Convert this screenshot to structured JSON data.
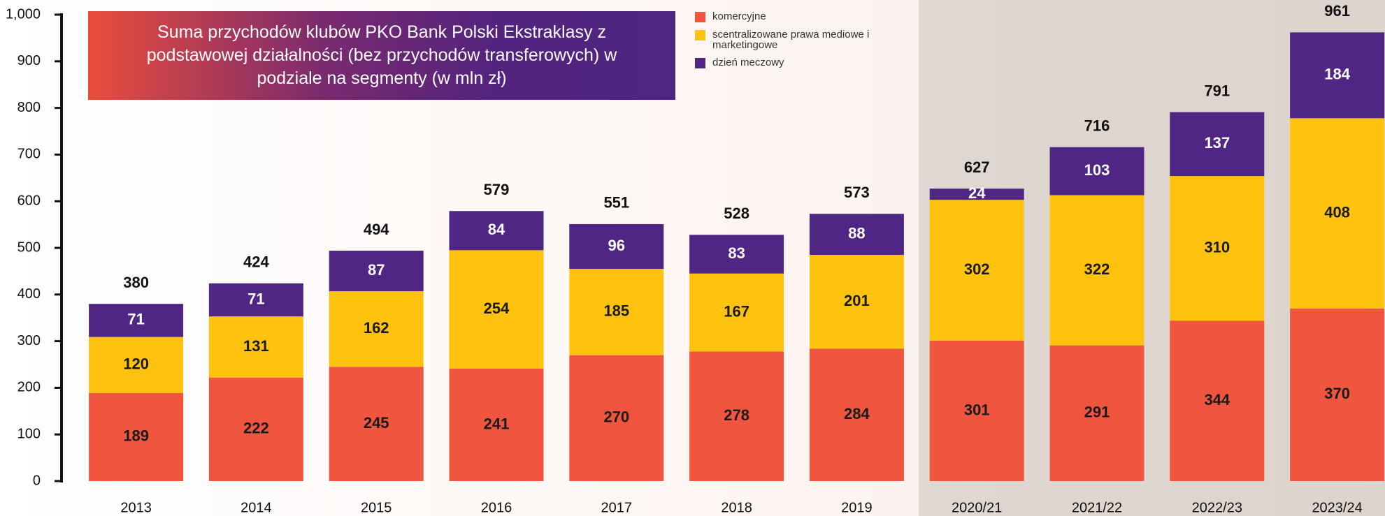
{
  "chart_data": {
    "type": "stacked_bar",
    "title": "Suma przychodów klubów PKO Bank Polski Ekstraklasy z podstawowej działalności (bez przychodów transferowych) w podziale na segmenty (w mln zł)",
    "categories": [
      "2013",
      "2014",
      "2015",
      "2016",
      "2017",
      "2018",
      "2019",
      "2020/21",
      "2021/22",
      "2022/23",
      "2023/24"
    ],
    "series": [
      {
        "name": "komercyjne",
        "color": "#f0553f",
        "values": [
          189,
          222,
          245,
          241,
          270,
          278,
          284,
          301,
          291,
          344,
          370
        ]
      },
      {
        "name": "scentralizowane prawa mediowe i marketingowe",
        "color": "#ffc20e",
        "values": [
          120,
          131,
          162,
          254,
          185,
          167,
          201,
          302,
          322,
          310,
          408
        ]
      },
      {
        "name": "dzień meczowy",
        "color": "#4f2683",
        "values": [
          71,
          71,
          87,
          84,
          96,
          83,
          88,
          24,
          103,
          137,
          184
        ]
      }
    ],
    "totals": [
      380,
      424,
      494,
      579,
      551,
      528,
      573,
      627,
      716,
      791,
      961
    ],
    "ylim": [
      0,
      1000
    ],
    "yticks": [
      0,
      100,
      200,
      300,
      400,
      500,
      600,
      700,
      800,
      900,
      {
        "value": 1000,
        "label": "1,000"
      }
    ]
  }
}
